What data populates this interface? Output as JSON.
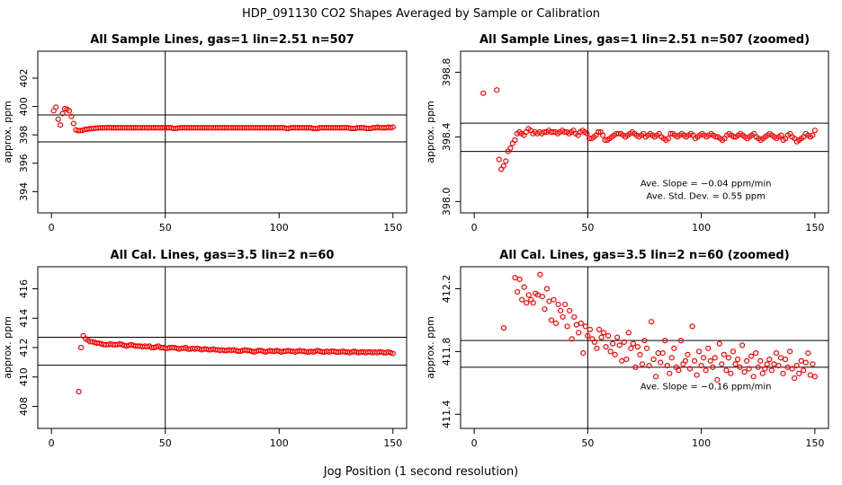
{
  "figure": {
    "title": "HDP_091130  CO2 Shapes Averaged by Sample or Calibration",
    "xlabel": "Jog Position (1 second resolution)"
  },
  "colors": {
    "points": "#ff0000",
    "lines": "#000000"
  },
  "chart_data": [
    {
      "type": "scatter",
      "title": "All Sample Lines, gas=1 lin=2.51 n=507",
      "ylabel": "approx. ppm",
      "xlim": [
        -6,
        156
      ],
      "ylim": [
        392.5,
        403.9
      ],
      "xticks": [
        0,
        50,
        100,
        150
      ],
      "yticks": [
        394,
        396,
        398,
        400,
        402
      ],
      "ytick_labels": [
        "394",
        "396",
        "398",
        "400",
        "402"
      ],
      "hlines": [
        399.4,
        397.5
      ],
      "vline": 50,
      "annotations": [],
      "points": {
        "x_start": 1,
        "x_end": 150,
        "y": [
          399.7,
          399.95,
          399.1,
          398.7,
          399.5,
          399.85,
          399.8,
          399.7,
          399.3,
          398.8,
          398.35,
          398.3,
          398.3,
          398.32,
          398.38,
          398.4,
          398.42,
          398.45,
          398.45,
          398.48,
          398.48,
          398.5,
          398.5,
          398.5,
          398.5,
          398.52,
          398.5,
          398.5,
          398.5,
          398.5,
          398.5,
          398.5,
          398.5,
          398.5,
          398.5,
          398.5,
          398.5,
          398.5,
          398.5,
          398.5,
          398.5,
          398.5,
          398.5,
          398.5,
          398.5,
          398.5,
          398.5,
          398.5,
          398.5,
          398.5,
          398.5,
          398.5,
          398.5,
          398.5,
          398.45,
          398.45,
          398.48,
          398.5,
          398.5,
          398.5,
          398.5,
          398.5,
          398.5,
          398.5,
          398.5,
          398.5,
          398.5,
          398.5,
          398.5,
          398.5,
          398.5,
          398.5,
          398.5,
          398.5,
          398.5,
          398.5,
          398.5,
          398.5,
          398.5,
          398.5,
          398.5,
          398.5,
          398.5,
          398.5,
          398.5,
          398.5,
          398.5,
          398.5,
          398.5,
          398.5,
          398.5,
          398.5,
          398.5,
          398.5,
          398.5,
          398.5,
          398.5,
          398.5,
          398.5,
          398.5,
          398.5,
          398.5,
          398.5,
          398.5,
          398.5,
          398.45,
          398.45,
          398.5,
          398.5,
          398.5,
          398.5,
          398.5,
          398.5,
          398.5,
          398.5,
          398.5,
          398.5,
          398.45,
          398.45,
          398.45,
          398.5,
          398.5,
          398.5,
          398.5,
          398.5,
          398.5,
          398.5,
          398.5,
          398.5,
          398.5,
          398.5,
          398.5,
          398.5,
          398.5,
          398.45,
          398.45,
          398.45,
          398.5,
          398.5,
          398.5,
          398.5,
          398.45,
          398.45,
          398.45,
          398.5,
          398.5,
          398.55,
          398.5,
          398.5,
          398.5,
          398.5,
          398.55,
          398.5,
          398.55
        ]
      }
    },
    {
      "type": "scatter",
      "title": "All Sample Lines, gas=1 lin=2.51 n=507 (zoomed)",
      "ylabel": "approx. ppm",
      "xlim": [
        -6,
        156
      ],
      "ylim": [
        397.93,
        398.93
      ],
      "xticks": [
        0,
        50,
        100,
        150
      ],
      "yticks": [
        398.0,
        398.4,
        398.8
      ],
      "ytick_labels": [
        "398.0",
        "398.4",
        "398.8"
      ],
      "hlines": [
        398.485,
        398.31
      ],
      "vline": 50,
      "annotations": [
        {
          "text": "Ave. Slope =  −0.04  ppm/min",
          "x": 102,
          "y": 398.095
        },
        {
          "text": "Ave. Std. Dev. =  0.55  ppm",
          "x": 102,
          "y": 398.015
        }
      ],
      "points": {
        "x_start": 4,
        "x_end": 150,
        "y": [
          398.67,
          null,
          null,
          null,
          null,
          null,
          398.69,
          398.26,
          398.2,
          398.22,
          398.25,
          398.31,
          398.33,
          398.36,
          398.38,
          398.42,
          398.43,
          398.42,
          398.41,
          398.43,
          398.45,
          398.44,
          398.42,
          398.43,
          398.42,
          398.43,
          398.42,
          398.43,
          398.43,
          398.44,
          398.43,
          398.43,
          398.43,
          398.42,
          398.43,
          398.44,
          398.43,
          398.43,
          398.42,
          398.43,
          398.44,
          398.42,
          398.41,
          398.43,
          398.44,
          398.43,
          398.42,
          398.39,
          398.39,
          398.4,
          398.41,
          398.43,
          398.43,
          398.41,
          398.38,
          398.38,
          398.39,
          398.4,
          398.41,
          398.42,
          398.42,
          398.42,
          398.41,
          398.4,
          398.41,
          398.42,
          398.43,
          398.42,
          398.41,
          398.4,
          398.41,
          398.42,
          398.4,
          398.41,
          398.42,
          398.41,
          398.4,
          398.41,
          398.42,
          398.4,
          398.39,
          398.38,
          398.39,
          398.42,
          398.42,
          398.41,
          398.4,
          398.41,
          398.42,
          398.41,
          398.4,
          398.41,
          398.42,
          398.41,
          398.39,
          398.4,
          398.41,
          398.42,
          398.41,
          398.4,
          398.41,
          398.42,
          398.41,
          398.4,
          398.4,
          398.39,
          398.38,
          398.39,
          398.41,
          398.42,
          398.41,
          398.4,
          398.4,
          398.41,
          398.42,
          398.41,
          398.4,
          398.39,
          398.4,
          398.41,
          398.42,
          398.4,
          398.39,
          398.38,
          398.39,
          398.4,
          398.41,
          398.42,
          398.41,
          398.4,
          398.39,
          398.4,
          398.41,
          398.38,
          398.39,
          398.41,
          398.42,
          398.4,
          398.39,
          398.37,
          398.38,
          398.39,
          398.4,
          398.42,
          398.41,
          398.4,
          398.41,
          398.44
        ]
      }
    },
    {
      "type": "scatter",
      "title": "All Cal. Lines, gas=3.5 lin=2 n=60",
      "ylabel": "approx. ppm",
      "xlim": [
        -6,
        156
      ],
      "ylim": [
        406.5,
        417.5
      ],
      "xticks": [
        0,
        50,
        100,
        150
      ],
      "yticks": [
        408,
        410,
        412,
        414,
        416
      ],
      "ytick_labels": [
        "408",
        "410",
        "412",
        "414",
        "416"
      ],
      "hlines": [
        412.7,
        410.8
      ],
      "vline": 50,
      "annotations": [],
      "points": {
        "x_start": 12,
        "x_end": 150,
        "y": [
          409.0,
          412.0,
          412.8,
          412.6,
          412.5,
          412.4,
          412.4,
          412.35,
          412.3,
          412.3,
          412.25,
          412.2,
          412.2,
          412.2,
          412.25,
          412.2,
          412.2,
          412.2,
          412.25,
          412.2,
          412.15,
          412.1,
          412.15,
          412.2,
          412.15,
          412.1,
          412.1,
          412.1,
          412.05,
          412.1,
          412.05,
          412.1,
          412.0,
          412.0,
          412.05,
          412.1,
          412.0,
          412.0,
          411.95,
          411.95,
          412.0,
          412.0,
          412.0,
          411.95,
          411.9,
          411.95,
          411.95,
          412.0,
          411.9,
          411.9,
          411.95,
          411.9,
          411.95,
          411.9,
          411.85,
          411.9,
          411.9,
          411.85,
          411.85,
          411.9,
          411.85,
          411.85,
          411.8,
          411.85,
          411.8,
          411.8,
          411.85,
          411.8,
          411.85,
          411.8,
          411.75,
          411.75,
          411.8,
          411.85,
          411.8,
          411.8,
          411.75,
          411.7,
          411.75,
          411.8,
          411.8,
          411.75,
          411.7,
          411.75,
          411.8,
          411.75,
          411.75,
          411.8,
          411.75,
          411.7,
          411.75,
          411.75,
          411.8,
          411.75,
          411.75,
          411.7,
          411.75,
          411.8,
          411.75,
          411.75,
          411.7,
          411.7,
          411.75,
          411.7,
          411.75,
          411.8,
          411.75,
          411.7,
          411.7,
          411.75,
          411.7,
          411.75,
          411.75,
          411.7,
          411.7,
          411.7,
          411.75,
          411.7,
          411.7,
          411.65,
          411.7,
          411.75,
          411.7,
          411.65,
          411.7,
          411.7,
          411.65,
          411.7,
          411.7,
          411.65,
          411.7,
          411.65,
          411.7,
          411.7,
          411.65,
          411.65,
          411.7,
          411.65,
          411.6
        ]
      }
    },
    {
      "type": "scatter",
      "title": "All Cal. Lines, gas=3.5 lin=2 n=60 (zoomed)",
      "ylabel": "approx. ppm",
      "xlim": [
        -6,
        156
      ],
      "ylim": [
        411.31,
        412.34
      ],
      "xticks": [
        0,
        50,
        100,
        150
      ],
      "yticks": [
        411.4,
        411.8,
        412.2
      ],
      "ytick_labels": [
        "411.4",
        "411.8",
        "412.2"
      ],
      "hlines": [
        411.87,
        411.7
      ],
      "vline": 50,
      "annotations": [
        {
          "text": "Ave. Slope =  −0.16  ppm/min",
          "x": 102,
          "y": 411.56
        }
      ],
      "points": {
        "x_start": 13,
        "x_end": 150,
        "y": [
          411.95,
          null,
          null,
          null,
          null,
          412.27,
          412.18,
          412.26,
          412.13,
          412.21,
          412.11,
          412.16,
          412.13,
          412.11,
          412.17,
          412.16,
          412.29,
          412.15,
          412.07,
          412.2,
          412.12,
          412.0,
          412.13,
          411.98,
          412.1,
          412.06,
          412.02,
          412.1,
          411.96,
          412.06,
          411.88,
          412.02,
          411.97,
          411.92,
          411.98,
          411.79,
          411.96,
          411.9,
          411.94,
          411.88,
          411.86,
          411.82,
          411.94,
          411.89,
          411.92,
          411.83,
          411.9,
          411.8,
          411.85,
          411.78,
          411.89,
          411.84,
          411.74,
          411.86,
          411.75,
          411.92,
          411.82,
          411.85,
          411.7,
          411.83,
          411.78,
          411.72,
          411.87,
          411.82,
          411.71,
          411.99,
          411.75,
          411.64,
          411.79,
          411.73,
          411.79,
          411.87,
          411.71,
          411.66,
          411.76,
          411.82,
          411.7,
          411.68,
          411.87,
          411.72,
          411.74,
          411.78,
          411.69,
          411.96,
          411.74,
          411.65,
          411.8,
          411.71,
          411.76,
          411.68,
          411.82,
          411.74,
          411.7,
          411.76,
          411.62,
          411.85,
          411.72,
          411.78,
          411.68,
          411.76,
          411.66,
          411.8,
          411.72,
          411.75,
          411.7,
          411.84,
          411.67,
          411.74,
          411.69,
          411.77,
          411.64,
          411.79,
          411.7,
          411.74,
          411.66,
          411.69,
          411.72,
          411.75,
          411.68,
          411.72,
          411.79,
          411.71,
          411.76,
          411.66,
          411.75,
          411.7,
          411.8,
          411.69,
          411.63,
          411.71,
          411.66,
          411.74,
          411.68,
          411.73,
          411.79,
          411.65,
          411.72,
          411.64
        ]
      }
    }
  ]
}
